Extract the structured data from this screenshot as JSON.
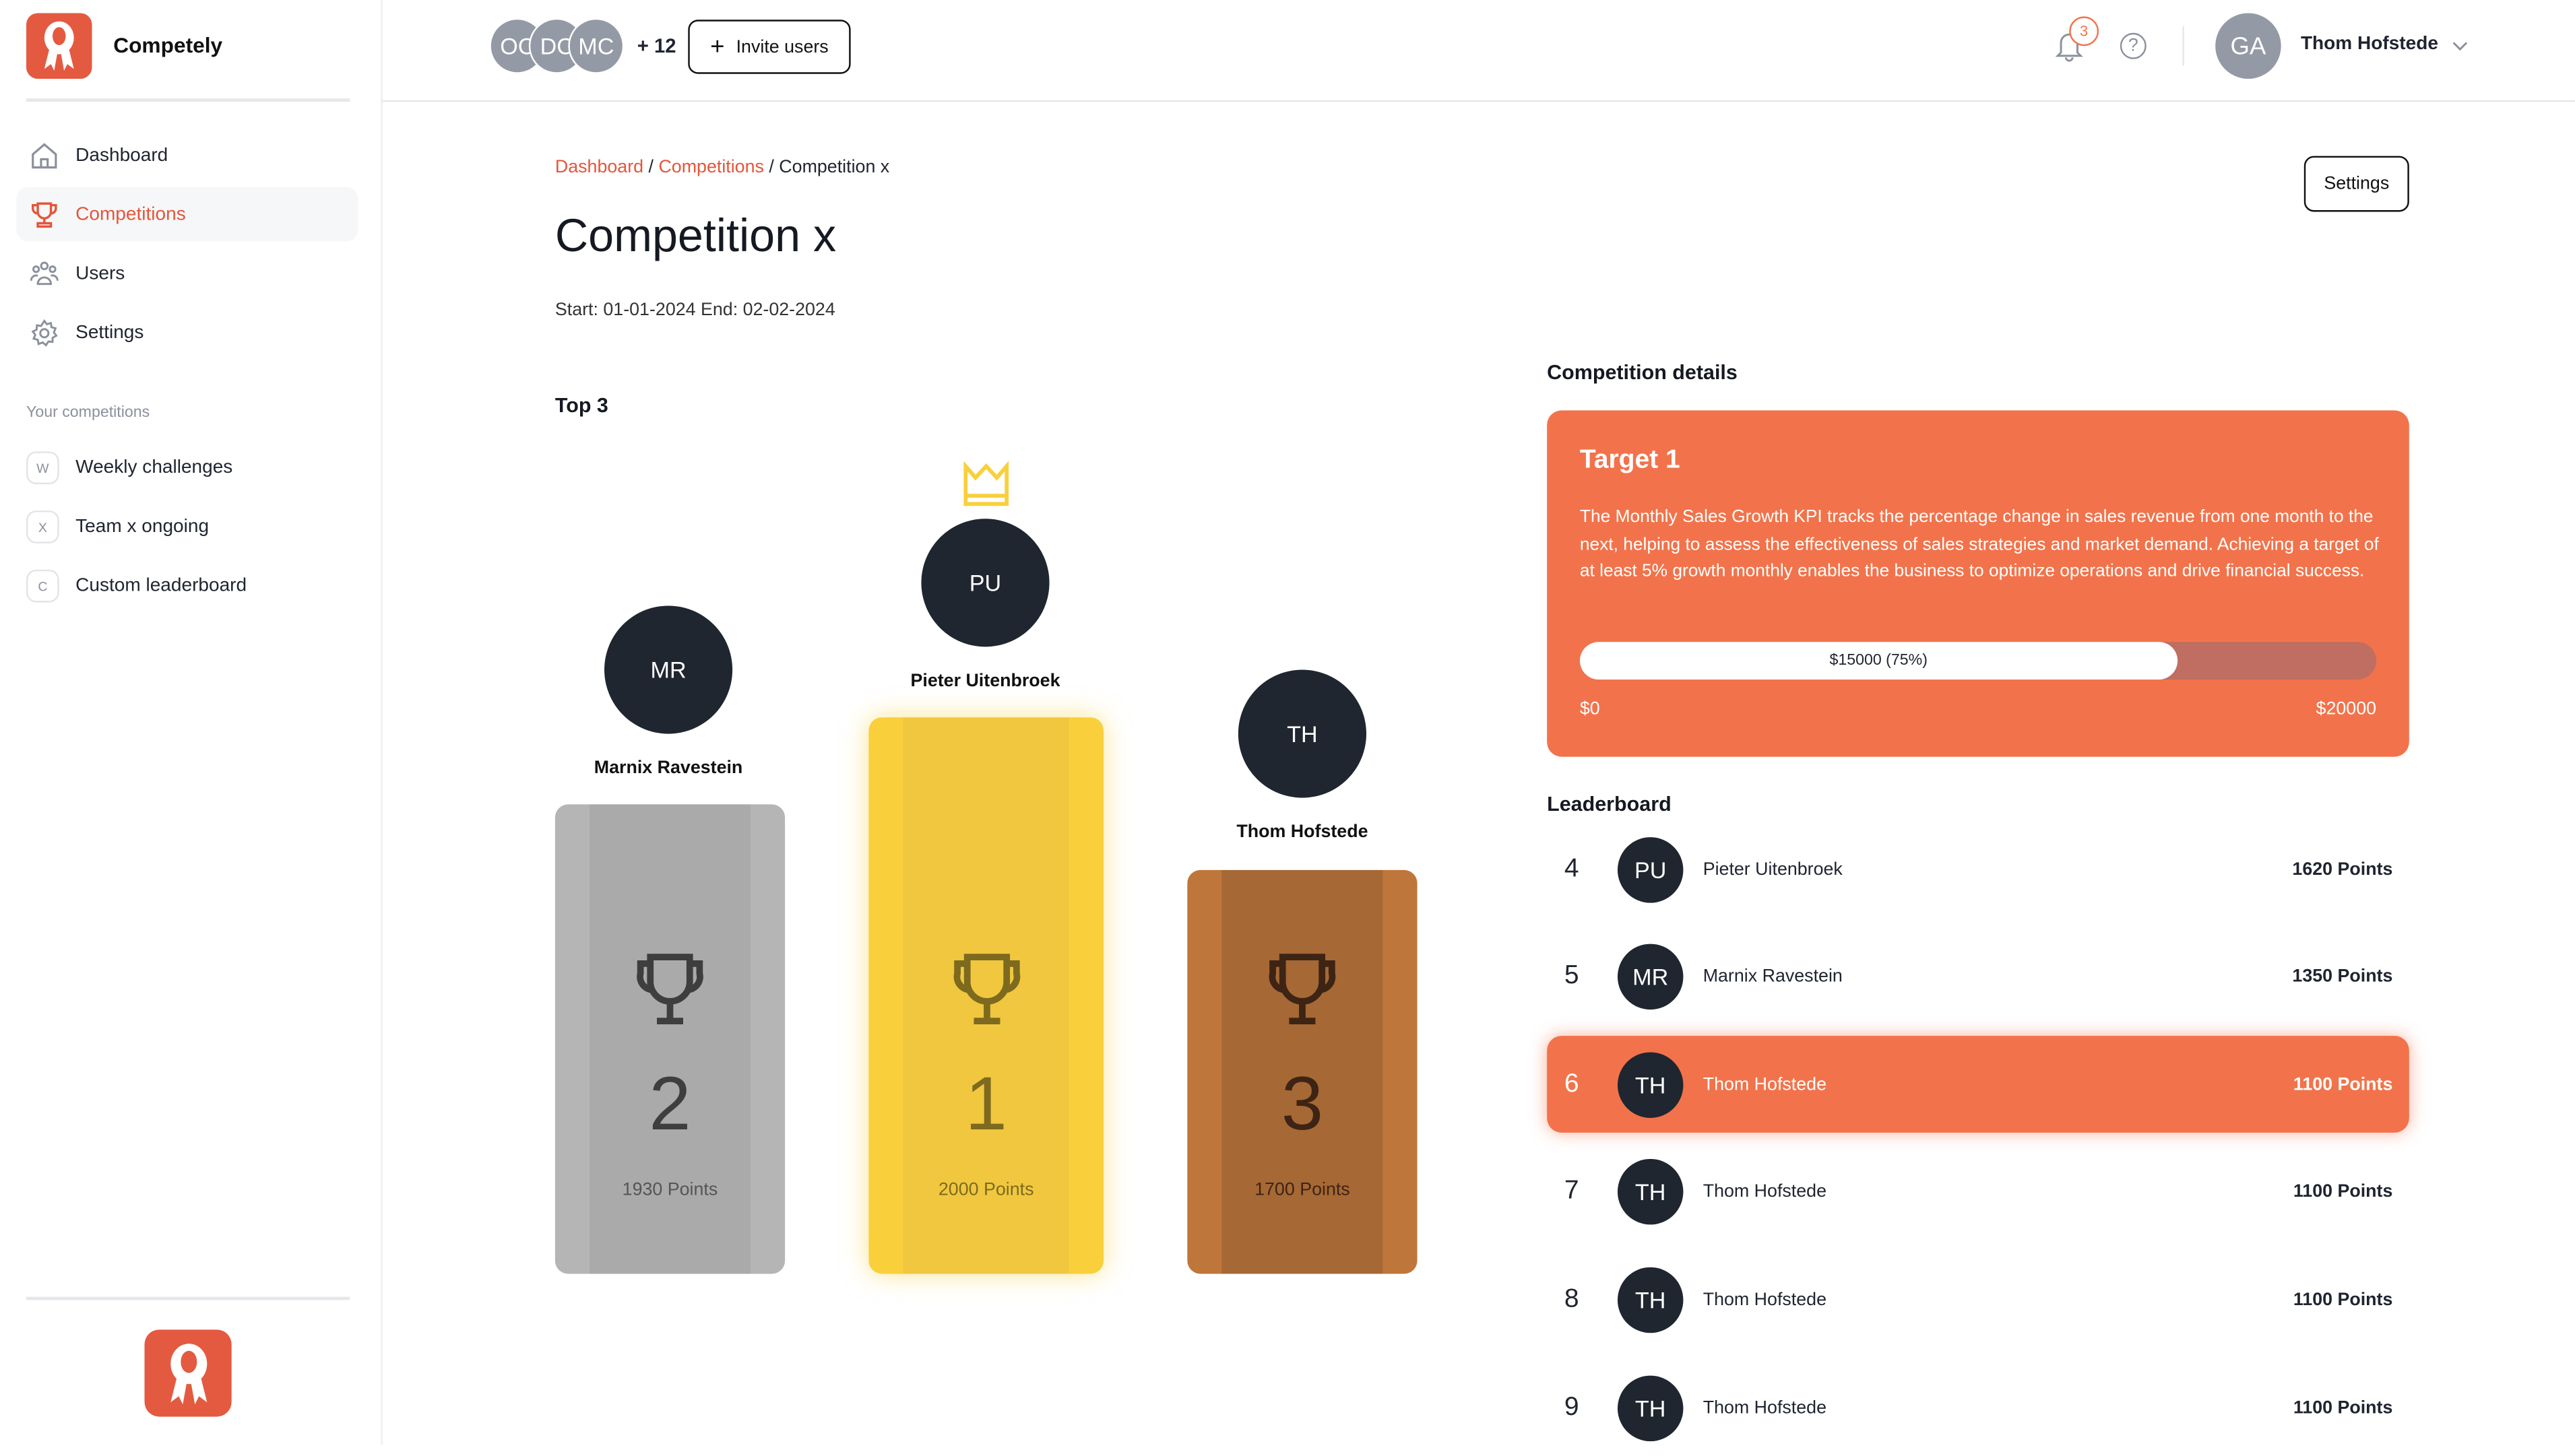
{
  "app": {
    "name": "Competely",
    "accent": "#e4553b"
  },
  "sidebar": {
    "items": [
      {
        "label": "Dashboard",
        "icon": "home-icon"
      },
      {
        "label": "Competitions",
        "icon": "trophy-icon",
        "active": true
      },
      {
        "label": "Users",
        "icon": "users-icon"
      },
      {
        "label": "Settings",
        "icon": "gear-icon"
      }
    ],
    "section_title": "Your competitions",
    "competitions": [
      {
        "badge": "W",
        "label": "Weekly challenges"
      },
      {
        "badge": "X",
        "label": "Team x ongoing"
      },
      {
        "badge": "C",
        "label": "Custom leaderboard"
      }
    ]
  },
  "header": {
    "avatars": [
      "OC",
      "DC",
      "MC"
    ],
    "more_count": "+ 12",
    "invite_label": "Invite users",
    "notification_count": "3",
    "user_initials": "GA",
    "user_name": "Thom Hofstede"
  },
  "page": {
    "breadcrumb": [
      "Dashboard",
      "Competitions",
      "Competition x"
    ],
    "title": "Competition x",
    "dates": "Start: 01-01-2024 End: 02-02-2024",
    "settings_label": "Settings",
    "top3_title": "Top 3",
    "podium": [
      {
        "rank": "2",
        "initials": "MR",
        "name": "Marnix Ravestein",
        "points": "1930 Points",
        "color": "#b5b5b5"
      },
      {
        "rank": "1",
        "initials": "PU",
        "name": "Pieter Uitenbroek",
        "points": "2000 Points",
        "color": "#f9d03c"
      },
      {
        "rank": "3",
        "initials": "TH",
        "name": "Thom Hofstede",
        "points": "1700 Points",
        "color": "#bf763a"
      }
    ],
    "details_title": "Competition details",
    "target": {
      "title": "Target 1",
      "description": "The Monthly Sales Growth KPI tracks the percentage change in sales revenue from one month to the next, helping to assess the effectiveness of sales strategies and market demand. Achieving a target of at least 5% growth monthly enables the business to optimize operations and drive financial success.",
      "progress_label": "$15000 (75%)",
      "progress_percent": 75,
      "min_label": "$0",
      "max_label": "$20000"
    },
    "leaderboard_title": "Leaderboard",
    "leaderboard": [
      {
        "rank": "4",
        "initials": "PU",
        "name": "Pieter Uitenbroek",
        "points": "1620 Points"
      },
      {
        "rank": "5",
        "initials": "MR",
        "name": "Marnix Ravestein",
        "points": "1350 Points"
      },
      {
        "rank": "6",
        "initials": "TH",
        "name": "Thom Hofstede",
        "points": "1100 Points",
        "highlighted": true
      },
      {
        "rank": "7",
        "initials": "TH",
        "name": "Thom Hofstede",
        "points": "1100 Points"
      },
      {
        "rank": "8",
        "initials": "TH",
        "name": "Thom Hofstede",
        "points": "1100 Points"
      },
      {
        "rank": "9",
        "initials": "TH",
        "name": "Thom Hofstede",
        "points": "1100 Points"
      }
    ]
  }
}
